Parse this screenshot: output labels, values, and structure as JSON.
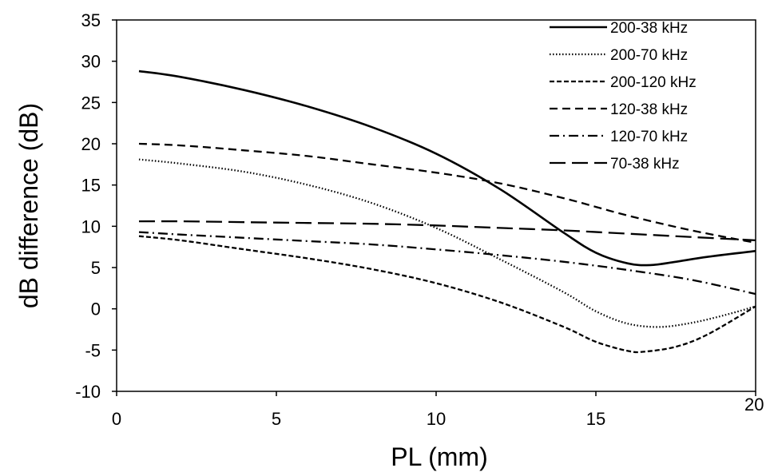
{
  "chart_data": {
    "type": "line",
    "xlabel": "PL (mm)",
    "ylabel": "dB difference (dB)",
    "xlim": [
      0,
      20
    ],
    "ylim": [
      -10,
      35
    ],
    "xticks": [
      0,
      5,
      10,
      15,
      20
    ],
    "yticks": [
      -10,
      -5,
      0,
      5,
      10,
      15,
      20,
      25,
      30,
      35
    ],
    "grid": false,
    "legend_position": "top-right",
    "series": [
      {
        "name": "200-38 kHz",
        "style": "solid",
        "x": [
          0.7,
          2,
          4,
          6,
          8,
          10,
          12,
          14,
          15,
          16,
          16.7,
          17.5,
          18.5,
          20
        ],
        "y": [
          28.8,
          28.1,
          26.5,
          24.5,
          22.0,
          18.8,
          14.5,
          9.2,
          6.8,
          5.5,
          5.3,
          5.7,
          6.3,
          7.0
        ]
      },
      {
        "name": "200-70 kHz",
        "style": "dotted",
        "x": [
          0.7,
          2,
          4,
          6,
          8,
          10,
          12,
          14,
          15,
          16,
          17,
          18,
          19,
          20
        ],
        "y": [
          18.1,
          17.6,
          16.6,
          15.0,
          12.8,
          9.8,
          6.0,
          2.0,
          -0.3,
          -1.8,
          -2.2,
          -1.7,
          -0.8,
          0.3
        ]
      },
      {
        "name": "200-120 kHz",
        "style": "short-dash",
        "x": [
          0.7,
          2,
          4,
          6,
          8,
          10,
          12,
          14,
          15,
          16,
          16.5,
          17.5,
          18.5,
          20
        ],
        "y": [
          8.8,
          8.3,
          7.2,
          6.1,
          4.8,
          3.1,
          0.8,
          -2.2,
          -4.0,
          -5.1,
          -5.2,
          -4.6,
          -3.1,
          0.3
        ]
      },
      {
        "name": "120-38 kHz",
        "style": "dash",
        "x": [
          0.7,
          2,
          4,
          6,
          8,
          10,
          12,
          14,
          16,
          18,
          20
        ],
        "y": [
          20.0,
          19.8,
          19.2,
          18.5,
          17.5,
          16.5,
          15.2,
          13.4,
          11.3,
          9.5,
          8.0
        ]
      },
      {
        "name": "120-70 kHz",
        "style": "dash-dot",
        "x": [
          0.7,
          2,
          4,
          6,
          8,
          10,
          12,
          14,
          16,
          18,
          20
        ],
        "y": [
          9.3,
          9.0,
          8.6,
          8.2,
          7.8,
          7.2,
          6.5,
          5.7,
          4.7,
          3.5,
          1.8
        ]
      },
      {
        "name": "70-38 kHz",
        "style": "long-dash",
        "x": [
          0.7,
          2,
          4,
          6,
          8,
          10,
          12,
          14,
          16,
          18,
          20
        ],
        "y": [
          10.6,
          10.6,
          10.5,
          10.4,
          10.3,
          10.1,
          9.8,
          9.5,
          9.1,
          8.7,
          8.3
        ]
      }
    ]
  }
}
